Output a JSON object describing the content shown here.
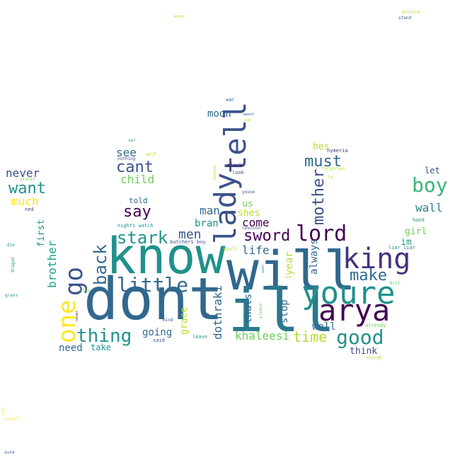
{
  "words": [
    {
      "text": "dont",
      "color": "#31688e"
    },
    {
      "text": "will",
      "color": "#31688e"
    },
    {
      "text": "know",
      "color": "#21918c"
    },
    {
      "text": "ill",
      "color": "#2a788e"
    },
    {
      "text": "youre",
      "color": "#21918c"
    },
    {
      "text": "arya",
      "color": "#440154"
    },
    {
      "text": "king",
      "color": "#46327e"
    },
    {
      "text": "lady",
      "color": "#3b528b"
    },
    {
      "text": "tell",
      "color": "#3b528b"
    },
    {
      "text": "go",
      "color": "#3b528b"
    },
    {
      "text": "one",
      "color": "#fde725"
    },
    {
      "text": "lord",
      "color": "#440154"
    },
    {
      "text": "little",
      "color": "#31688e"
    },
    {
      "text": "thing",
      "color": "#21918c"
    },
    {
      "text": "good",
      "color": "#21918c"
    },
    {
      "text": "boy",
      "color": "#35b779"
    },
    {
      "text": "stark",
      "color": "#21918c"
    },
    {
      "text": "back",
      "color": "#31688e"
    },
    {
      "text": "sword",
      "color": "#440154"
    },
    {
      "text": "mother",
      "color": "#3b528b"
    },
    {
      "text": "want",
      "color": "#21918c"
    },
    {
      "text": "cant",
      "color": "#3b528b"
    },
    {
      "text": "say",
      "color": "#440154"
    },
    {
      "text": "make",
      "color": "#31688e"
    },
    {
      "text": "must",
      "color": "#31688e"
    },
    {
      "text": "time",
      "color": "#b5de2b"
    },
    {
      "text": "men",
      "color": "#3b528b"
    },
    {
      "text": "khaleesi",
      "color": "#6ece58"
    },
    {
      "text": "dothraki",
      "color": "#31688e"
    },
    {
      "text": "moon",
      "color": "#31688e"
    },
    {
      "text": "thats",
      "color": "#31688e"
    },
    {
      "text": "going",
      "color": "#31688e"
    },
    {
      "text": "brother",
      "color": "#1f9e89"
    },
    {
      "text": "come",
      "color": "#440154"
    },
    {
      "text": "man",
      "color": "#31688e"
    },
    {
      "text": "life",
      "color": "#31688e"
    },
    {
      "text": "never",
      "color": "#3b528b"
    },
    {
      "text": "see",
      "color": "#31688e"
    },
    {
      "text": "child",
      "color": "#6ece58"
    },
    {
      "text": "wall",
      "color": "#26828e"
    },
    {
      "text": "much",
      "color": "#fde725"
    },
    {
      "text": "always",
      "color": "#31688e"
    },
    {
      "text": "stop",
      "color": "#31688e"
    },
    {
      "text": "year",
      "color": "#b5de2b"
    },
    {
      "text": "well",
      "color": "#31688e"
    },
    {
      "text": "bran",
      "color": "#21918c"
    },
    {
      "text": "need",
      "color": "#31688e"
    },
    {
      "text": "think",
      "color": "#3e4989"
    },
    {
      "text": "first",
      "color": "#21918c"
    },
    {
      "text": "grace",
      "color": "#b5de2b"
    },
    {
      "text": "shes",
      "color": "#b5de2b"
    },
    {
      "text": "us",
      "color": "#6ece58"
    },
    {
      "text": "girl",
      "color": "#6ece58"
    },
    {
      "text": "im",
      "color": "#1f9e89"
    },
    {
      "text": "hes",
      "color": "#b5de2b"
    },
    {
      "text": "take",
      "color": "#21918c"
    },
    {
      "text": "told",
      "color": "#31688e"
    },
    {
      "text": "let",
      "color": "#3b528b"
    },
    {
      "text": "nights watch",
      "color": "#21918c"
    },
    {
      "text": "butchers boy",
      "color": "#3b528b"
    },
    {
      "text": "youll",
      "color": "#b5de2b"
    },
    {
      "text": "said",
      "color": "#3b528b"
    },
    {
      "text": "leave",
      "color": "#21918c"
    },
    {
      "text": "oh",
      "color": "#3b528b"
    },
    {
      "text": "mind",
      "color": "#3b528b"
    },
    {
      "text": "please",
      "color": "#6ece58"
    },
    {
      "text": "enough",
      "color": "#b5de2b"
    },
    {
      "text": "already",
      "color": "#6ece58"
    },
    {
      "text": "kill",
      "color": "#35b779"
    },
    {
      "text": "liar liar",
      "color": "#21918c"
    },
    {
      "text": "hand",
      "color": "#21918c"
    },
    {
      "text": "lannister",
      "color": "#3b528b"
    },
    {
      "text": "nymeria",
      "color": "#46327e"
    },
    {
      "text": "look",
      "color": "#3b528b"
    },
    {
      "text": "black",
      "color": "#440154"
    },
    {
      "text": "war",
      "color": "#31688e"
    },
    {
      "text": "nothing",
      "color": "#3e4989"
    },
    {
      "text": "wolf",
      "color": "#b5de2b"
    },
    {
      "text": "ser",
      "color": "#1f9e89"
    },
    {
      "text": "sister",
      "color": "#6ece58"
    },
    {
      "text": "ned",
      "color": "#3b528b"
    },
    {
      "text": "die",
      "color": "#21918c"
    },
    {
      "text": "dragon",
      "color": "#21918c"
    },
    {
      "text": "grass",
      "color": "#21918c"
    },
    {
      "text": "stay",
      "color": "#6ece58"
    },
    {
      "text": "honour",
      "color": "#b5de2b"
    },
    {
      "text": "youve",
      "color": "#3b528b"
    },
    {
      "text": "lo",
      "color": "#b5de2b"
    },
    {
      "text": "targaryen",
      "color": "#b5de2b"
    },
    {
      "text": "even",
      "color": "#b5de2b"
    },
    {
      "text": "prince",
      "color": "#b5de2b"
    },
    {
      "text": "stand",
      "color": "#3b528b"
    },
    {
      "text": "yes",
      "color": "#fde725"
    },
    {
      "text": "robert",
      "color": "#fde725"
    },
    {
      "text": "sure",
      "color": "#3b528b"
    },
    {
      "text": "wasnt",
      "color": "#3b528b"
    },
    {
      "text": "one",
      "color": "#b5de2b"
    },
    {
      "text": "never",
      "color": "#440154"
    },
    {
      "text": "ask",
      "color": "#b5de2b"
    },
    {
      "text": "seen",
      "color": "#21918c"
    }
  ]
}
